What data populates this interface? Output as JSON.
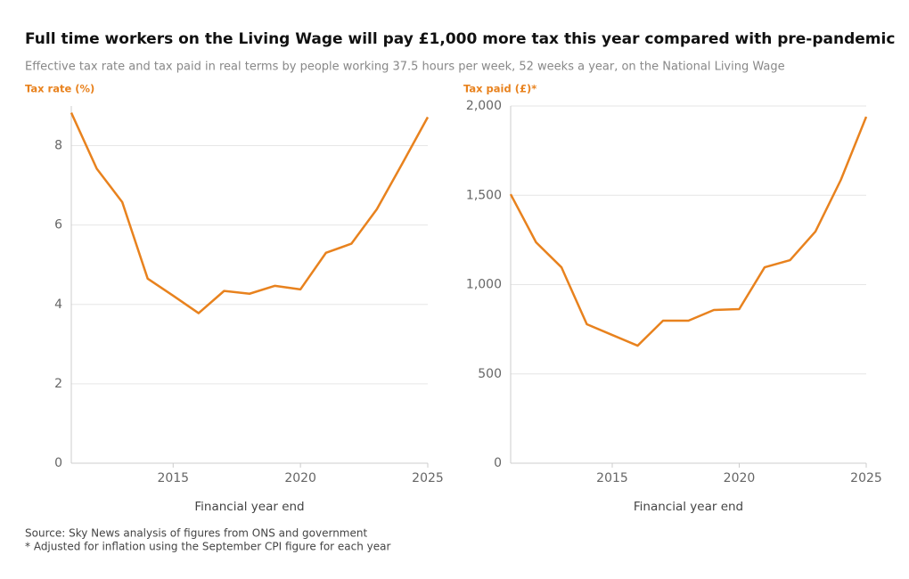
{
  "title": "Full time workers on the Living Wage will pay £1,000 more tax this year compared with pre-pandemic",
  "subtitle": "Effective tax rate and tax paid in real terms by people working 37.5 hours per week, 52 weeks a year, on the National Living Wage",
  "source": "Source: Sky News analysis of figures from ONS and government",
  "note": "* Adjusted for inflation using the September CPI figure for each year",
  "chart_data": [
    {
      "type": "line",
      "y_label": "Tax rate (%)",
      "x_label": "Financial year end",
      "color": "#e8821e",
      "grid": true,
      "x": [
        2011,
        2012,
        2013,
        2014,
        2015,
        2016,
        2017,
        2018,
        2019,
        2020,
        2021,
        2022,
        2023,
        2024,
        2025
      ],
      "values": [
        8.83,
        7.42,
        6.58,
        4.65,
        4.22,
        3.78,
        4.34,
        4.27,
        4.47,
        4.38,
        5.3,
        5.53,
        6.4,
        7.55,
        8.72
      ],
      "xlim": [
        2011,
        2025
      ],
      "xticks": [
        2015,
        2020,
        2025
      ],
      "ylim": [
        0,
        9
      ],
      "yticks": [
        0,
        2,
        4,
        6,
        8
      ]
    },
    {
      "type": "line",
      "y_label": "Tax paid (£)*",
      "x_label": "Financial year end",
      "color": "#e8821e",
      "grid": true,
      "x": [
        2011,
        2012,
        2013,
        2014,
        2015,
        2016,
        2017,
        2018,
        2019,
        2020,
        2021,
        2022,
        2023,
        2024,
        2025
      ],
      "values": [
        1506,
        1237,
        1097,
        778,
        718,
        658,
        798,
        798,
        858,
        863,
        1097,
        1137,
        1297,
        1586,
        1940
      ],
      "xlim": [
        2011,
        2025
      ],
      "xticks": [
        2015,
        2020,
        2025
      ],
      "ylim": [
        0,
        2000
      ],
      "yticks": [
        0,
        500,
        {
          "value": 1000,
          "label": "1,000"
        },
        {
          "value": 1500,
          "label": "1,500"
        },
        {
          "value": 2000,
          "label": "2,000"
        }
      ]
    }
  ]
}
